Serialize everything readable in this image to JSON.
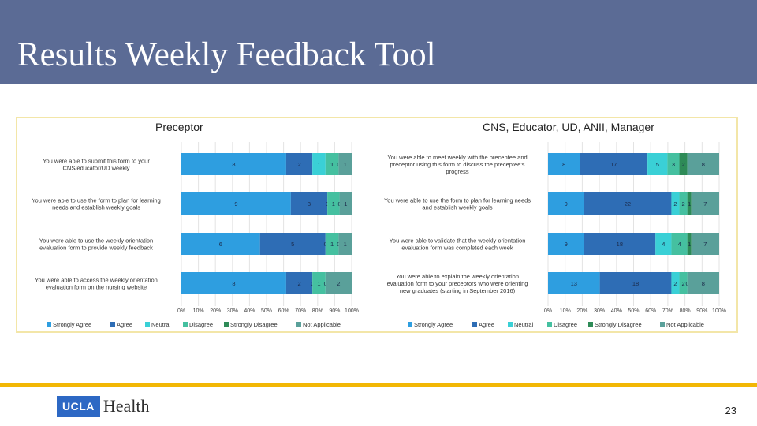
{
  "slide": {
    "title": "Results Weekly Feedback Tool",
    "page_number": "23",
    "logo_ucla": "UCLA",
    "logo_health": "Health"
  },
  "colors": {
    "title_bar": "#5b6b95",
    "footer_bar": "#f2b705",
    "series": [
      "#2e9ee0",
      "#2e6db5",
      "#3ad0d6",
      "#45c0a0",
      "#2e8b57",
      "#5aa09a"
    ]
  },
  "chart_data": [
    {
      "type": "bar",
      "stacked": "percent",
      "orientation": "horizontal",
      "title": "Preceptor",
      "categories": [
        "You were able to submit this form to your CNS/educator/UD weekly",
        "You were able to use the form to plan for learning needs and establish weekly goals",
        "You were able to use the weekly orientation evaluation form to provide weekly feedback",
        "You were able to access the weekly orientation evaluation form on the nursing website"
      ],
      "category_lines": [
        [
          "You were able to submit this form to your",
          "CNS/educator/UD weekly"
        ],
        [
          "You were able to use the form to plan for learning",
          "needs and establish weekly goals"
        ],
        [
          "You were able to use the weekly orientation",
          "evaluation form to provide weekly feedback"
        ],
        [
          "You were able to access the weekly orientation",
          "evaluation form on the nursing website"
        ]
      ],
      "series": [
        {
          "name": "Strongly Agree",
          "values": [
            8,
            9,
            6,
            8
          ]
        },
        {
          "name": "Agree",
          "values": [
            2,
            3,
            5,
            2
          ]
        },
        {
          "name": "Neutral",
          "values": [
            1,
            0,
            0,
            0
          ]
        },
        {
          "name": "Disagree",
          "values": [
            1,
            1,
            1,
            1
          ]
        },
        {
          "name": "Strongly Disagree",
          "values": [
            0,
            0,
            0,
            0
          ]
        },
        {
          "name": "Not Applicable",
          "values": [
            1,
            1,
            1,
            2
          ]
        }
      ],
      "xticks": [
        "0%",
        "10%",
        "20%",
        "30%",
        "40%",
        "50%",
        "60%",
        "70%",
        "80%",
        "90%",
        "100%"
      ],
      "xlim": [
        0,
        100
      ],
      "legend": "bottom"
    },
    {
      "type": "bar",
      "stacked": "percent",
      "orientation": "horizontal",
      "title": "CNS, Educator, UD, ANII, Manager",
      "categories": [
        "You were able to meet weekly with the preceptee and preceptor using this form to discuss the preceptee's progress",
        "You were able to use the form to plan for learning needs and establish weekly goals",
        "You were able to validate that the weekly orientation evaluation form was completed each week",
        "You were able to explain the weekly orientation evaluation form to your preceptors who were orienting new graduates (starting in September 2016)"
      ],
      "category_lines": [
        [
          "You were able to meet weekly with the preceptee and",
          "preceptor using this form to discuss the preceptee's",
          "progress"
        ],
        [
          "You were able to use the form to plan for learning needs",
          "and establish weekly goals"
        ],
        [
          "You were able to validate that the weekly orientation",
          "evaluation form was completed each week"
        ],
        [
          "You were able to explain the weekly orientation",
          "evaluation form to your preceptors who were orienting",
          "new graduates (starting in September 2016)"
        ]
      ],
      "series": [
        {
          "name": "Strongly Agree",
          "values": [
            8,
            9,
            9,
            13
          ]
        },
        {
          "name": "Agree",
          "values": [
            17,
            22,
            18,
            18
          ]
        },
        {
          "name": "Neutral",
          "values": [
            5,
            2,
            4,
            2
          ]
        },
        {
          "name": "Disagree",
          "values": [
            3,
            2,
            4,
            2
          ]
        },
        {
          "name": "Strongly Disagree",
          "values": [
            2,
            1,
            1,
            0
          ]
        },
        {
          "name": "Not Applicable",
          "values": [
            8,
            7,
            7,
            8
          ]
        }
      ],
      "xticks": [
        "0%",
        "10%",
        "20%",
        "30%",
        "40%",
        "50%",
        "60%",
        "70%",
        "80%",
        "90%",
        "100%"
      ],
      "xlim": [
        0,
        100
      ],
      "legend": "bottom"
    }
  ]
}
